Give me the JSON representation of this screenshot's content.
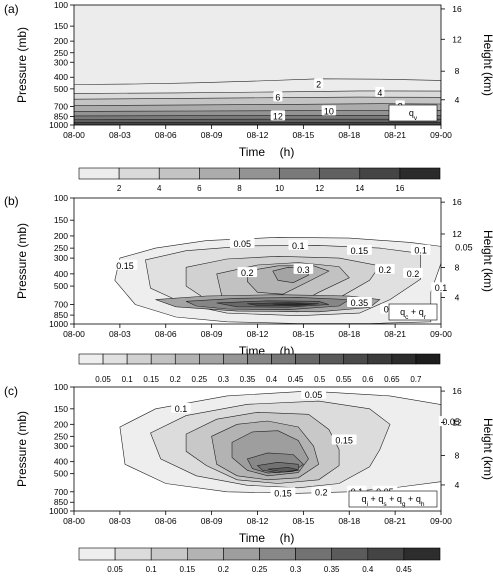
{
  "chart_data": [
    {
      "type": "heatmap",
      "panel_label": "(a)",
      "ylabel_left": "Pressure (mb)",
      "ylabel_right": "Height (km)",
      "xlabel_main": "Time",
      "xlabel_unit": "(h)",
      "x_ticks": [
        "08-00",
        "08-03",
        "08-06",
        "08-09",
        "08-12",
        "08-15",
        "08-18",
        "08-21",
        "09-00"
      ],
      "x_tick_labels_shown": false,
      "y_ticks_left": [
        "100",
        "150",
        "200",
        "250",
        "300",
        "400",
        "500",
        "700",
        "850",
        "1000"
      ],
      "y_ticks_left_values": [
        100,
        150,
        200,
        250,
        300,
        400,
        500,
        700,
        850,
        1000
      ],
      "y_ticks_right": [
        "4",
        "8",
        "12",
        "16"
      ],
      "y_ticks_right_values": [
        4,
        8,
        12,
        16
      ],
      "legend_label": "q_v",
      "contour_labels": [
        {
          "text": "2",
          "time": 48.0,
          "pressure": 460
        },
        {
          "text": "4",
          "time": 60.0,
          "pressure": 540
        },
        {
          "text": "6",
          "time": 40.0,
          "pressure": 590
        },
        {
          "text": "8",
          "time": 64.0,
          "pressure": 700
        },
        {
          "text": "10",
          "time": 50.0,
          "pressure": 770
        },
        {
          "text": "12",
          "time": 40.0,
          "pressure": 850
        }
      ],
      "colorbar": {
        "tick_labels": [
          "2",
          "4",
          "6",
          "8",
          "10",
          "12",
          "14",
          "16"
        ],
        "n_bins": 9,
        "colors": [
          "#ececec",
          "#dadada",
          "#c4c4c4",
          "#acacac",
          "#939393",
          "#7a7a7a",
          "#606060",
          "#454545",
          "#2b2b2b"
        ]
      }
    },
    {
      "type": "heatmap",
      "panel_label": "(b)",
      "ylabel_left": "Pressure (mb)",
      "ylabel_right": "Height (km)",
      "xlabel_main": "Time",
      "xlabel_unit": "(h)",
      "x_ticks": [
        "08-00",
        "08-03",
        "08-06",
        "08-09",
        "08-12",
        "08-15",
        "08-18",
        "08-21",
        "09-00"
      ],
      "x_tick_labels_shown": true,
      "y_ticks_left": [
        "100",
        "150",
        "200",
        "250",
        "300",
        "400",
        "500",
        "700",
        "850",
        "1000"
      ],
      "y_ticks_left_values": [
        100,
        150,
        200,
        250,
        300,
        400,
        500,
        700,
        850,
        1000
      ],
      "y_ticks_right": [
        "4",
        "8",
        "12",
        "16"
      ],
      "y_ticks_right_values": [
        4,
        8,
        12,
        16
      ],
      "legend_label": "q_c + q_r",
      "contour_labels": [
        {
          "text": "0.05",
          "time": 33.0,
          "pressure": 232
        },
        {
          "text": "0.1",
          "time": 44.0,
          "pressure": 240
        },
        {
          "text": "0.15",
          "time": 56.0,
          "pressure": 263
        },
        {
          "text": "0.1",
          "time": 68.0,
          "pressure": 262
        },
        {
          "text": "0.05",
          "time": 76.5,
          "pressure": 248
        },
        {
          "text": "0.15",
          "time": 10.0,
          "pressure": 345
        },
        {
          "text": "0.2",
          "time": 34.0,
          "pressure": 395
        },
        {
          "text": "0.3",
          "time": 45.0,
          "pressure": 372
        },
        {
          "text": "0.2",
          "time": 61.0,
          "pressure": 372
        },
        {
          "text": "0.2",
          "time": 66.5,
          "pressure": 400
        },
        {
          "text": "0.35",
          "time": 56.0,
          "pressure": 682
        },
        {
          "text": "0.3",
          "time": 62.0,
          "pressure": 770
        },
        {
          "text": "0.1",
          "time": 72.0,
          "pressure": 520
        }
      ],
      "colorbar": {
        "tick_labels": [
          "0.05",
          "0.1",
          "0.15",
          "0.2",
          "0.25",
          "0.3",
          "0.35",
          "0.4",
          "0.45",
          "0.5",
          "0.55",
          "0.6",
          "0.65",
          "0.7"
        ],
        "n_bins": 15,
        "colors": [
          "#eeeeee",
          "#e0e0e0",
          "#d1d1d1",
          "#c2c2c2",
          "#b3b3b3",
          "#a4a4a4",
          "#959595",
          "#868686",
          "#777777",
          "#686868",
          "#595959",
          "#4a4a4a",
          "#3b3b3b",
          "#2c2c2c",
          "#1d1d1d"
        ]
      }
    },
    {
      "type": "heatmap",
      "panel_label": "(c)",
      "ylabel_left": "Pressure (mb)",
      "ylabel_right": "Height (km)",
      "xlabel_main": "Time",
      "xlabel_unit": "(h)",
      "x_ticks": [
        "08-00",
        "08-03",
        "08-06",
        "08-09",
        "08-12",
        "08-15",
        "08-18",
        "08-21",
        "09-00"
      ],
      "x_tick_labels_shown": true,
      "y_ticks_left": [
        "100",
        "150",
        "200",
        "250",
        "300",
        "400",
        "500",
        "700",
        "850",
        "1000"
      ],
      "y_ticks_left_values": [
        100,
        150,
        200,
        250,
        300,
        400,
        500,
        700,
        850,
        1000
      ],
      "y_ticks_right": [
        "4",
        "8",
        "12",
        "16"
      ],
      "y_ticks_right_values": [
        4,
        8,
        12,
        16
      ],
      "legend_label": "q_i + q_s + q_g + q_h",
      "contour_labels": [
        {
          "text": "0.05",
          "time": 47.0,
          "pressure": 116
        },
        {
          "text": "0.1",
          "time": 21.0,
          "pressure": 150
        },
        {
          "text": "0.15",
          "time": 53.0,
          "pressure": 270
        },
        {
          "text": "0.05",
          "time": 74.0,
          "pressure": 192
        },
        {
          "text": "0.15",
          "time": 41.0,
          "pressure": 720
        },
        {
          "text": "0.2",
          "time": 48.5,
          "pressure": 710
        },
        {
          "text": "0.1",
          "time": 55.5,
          "pressure": 700
        },
        {
          "text": "0.05",
          "time": 61.0,
          "pressure": 700
        }
      ],
      "colorbar": {
        "tick_labels": [
          "0.05",
          "0.1",
          "0.15",
          "0.2",
          "0.25",
          "0.3",
          "0.35",
          "0.4",
          "0.45"
        ],
        "n_bins": 10,
        "colors": [
          "#eeeeee",
          "#dcdcdc",
          "#c8c8c8",
          "#b3b3b3",
          "#9e9e9e",
          "#888888",
          "#727272",
          "#5b5b5b",
          "#444444",
          "#2d2d2d"
        ]
      }
    }
  ]
}
